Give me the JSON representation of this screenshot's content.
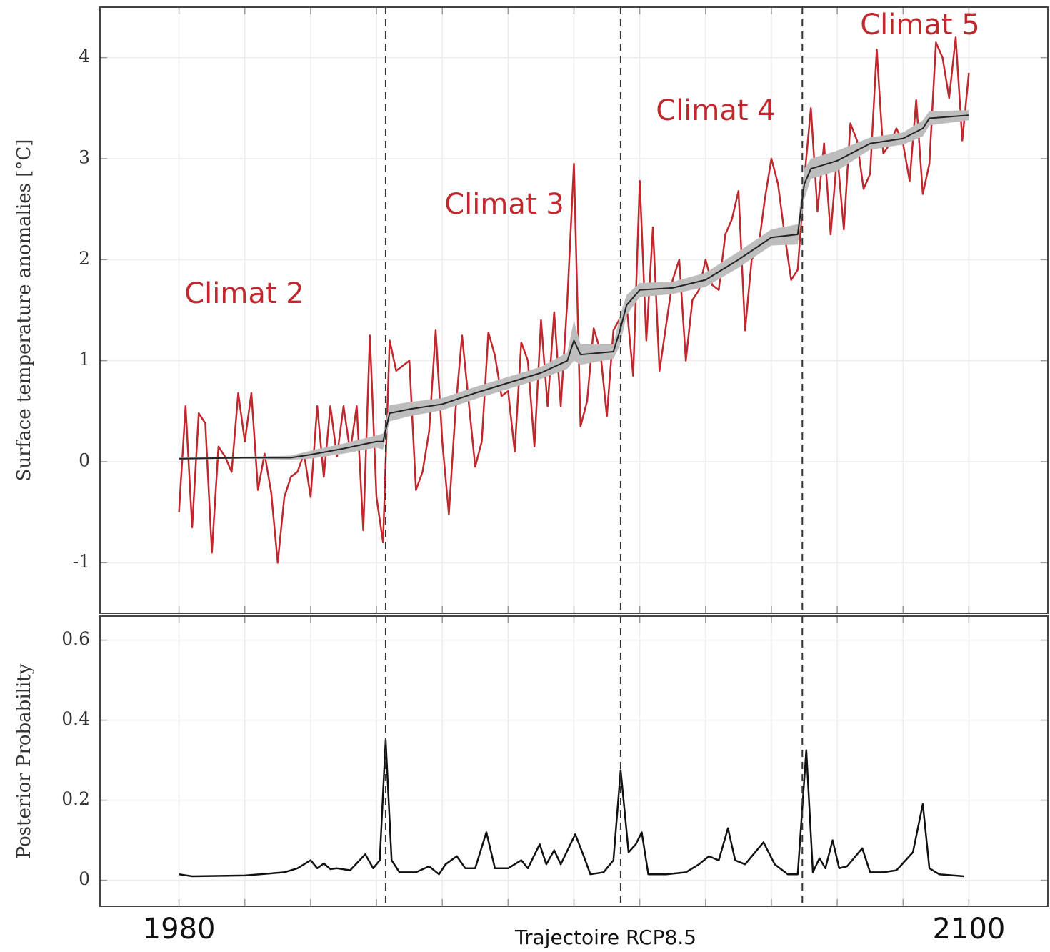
{
  "chart_data": [
    {
      "type": "line",
      "ylabel": "Surface temperature anomalies [°C]",
      "xlim": [
        1968,
        2112
      ],
      "ylim": [
        -1.5,
        4.5
      ],
      "yticks": [
        -1,
        0,
        1,
        2,
        3,
        4
      ],
      "minor_xticks": [
        1980,
        1990,
        2000,
        2010,
        2020,
        2030,
        2040,
        2050,
        2060,
        2070,
        2080,
        2090,
        2100
      ],
      "grid": true,
      "changepoints": [
        2011.4,
        2047.1,
        2074.7
      ],
      "annotations": [
        "Climat 2",
        "Climat 3",
        "Climat 4",
        "Climat 5"
      ],
      "annotation_color": "#c0282d",
      "series": [
        {
          "color": "#c0282d",
          "x": [
            1980,
            1981,
            1982,
            1983,
            1984,
            1985,
            1986,
            1987,
            1988,
            1989,
            1990,
            1991,
            1992,
            1993,
            1994,
            1995,
            1996,
            1997,
            1998,
            1999,
            2000,
            2001,
            2002,
            2003,
            2004,
            2005,
            2006,
            2007,
            2008,
            2009,
            2010,
            2011,
            2012,
            2013,
            2014,
            2015,
            2016,
            2017,
            2018,
            2019,
            2020,
            2021,
            2022,
            2023,
            2024,
            2025,
            2026,
            2027,
            2028,
            2029,
            2030,
            2031,
            2032,
            2033,
            2034,
            2035,
            2036,
            2037,
            2038,
            2039,
            2040,
            2041,
            2042,
            2043,
            2044,
            2045,
            2046,
            2047,
            2048,
            2049,
            2050,
            2051,
            2052,
            2053,
            2054,
            2055,
            2056,
            2057,
            2058,
            2059,
            2060,
            2061,
            2062,
            2063,
            2064,
            2065,
            2066,
            2067,
            2068,
            2069,
            2070,
            2071,
            2072,
            2073,
            2074,
            2075,
            2076,
            2077,
            2078,
            2079,
            2080,
            2081,
            2082,
            2083,
            2084,
            2085,
            2086,
            2087,
            2088,
            2089,
            2090,
            2091,
            2092,
            2093,
            2094,
            2095,
            2096,
            2097,
            2098,
            2099,
            2100
          ],
          "values": [
            -0.5,
            0.55,
            -0.65,
            0.48,
            0.38,
            -0.9,
            0.15,
            0.05,
            -0.1,
            0.68,
            0.2,
            0.68,
            -0.28,
            0.08,
            -0.3,
            -1.0,
            -0.35,
            -0.15,
            -0.1,
            0.08,
            -0.35,
            0.55,
            -0.15,
            0.55,
            0.05,
            0.55,
            0.1,
            0.55,
            -0.68,
            1.25,
            -0.35,
            -0.8,
            1.2,
            0.9,
            0.95,
            1.0,
            -0.28,
            -0.1,
            0.3,
            1.3,
            0.2,
            -0.52,
            0.5,
            1.25,
            0.6,
            -0.05,
            0.2,
            1.28,
            1.05,
            0.65,
            0.7,
            0.1,
            1.18,
            1.0,
            0.15,
            1.4,
            0.55,
            1.48,
            0.55,
            1.6,
            2.95,
            0.35,
            0.6,
            1.32,
            1.1,
            0.45,
            1.3,
            1.42,
            1.55,
            0.85,
            2.78,
            1.2,
            2.32,
            0.9,
            1.35,
            1.8,
            2.0,
            1.0,
            1.6,
            1.7,
            2.0,
            1.75,
            1.7,
            2.25,
            2.4,
            2.68,
            1.3,
            2.0,
            2.1,
            2.6,
            3.0,
            2.75,
            2.25,
            1.8,
            1.9,
            2.8,
            3.5,
            2.48,
            3.15,
            2.25,
            3.05,
            2.3,
            3.35,
            3.18,
            2.7,
            2.85,
            4.08,
            3.05,
            3.15,
            3.3,
            3.15,
            2.78,
            3.58,
            2.65,
            2.95,
            4.15,
            4.0,
            3.6,
            4.2,
            3.18,
            3.85
          ]
        },
        {
          "color": "#222222",
          "band_color": "#bdbdbd",
          "x": [
            1980,
            1990,
            1997,
            2000,
            2005,
            2010,
            2011,
            2012,
            2015,
            2020,
            2025,
            2030,
            2035,
            2039,
            2040,
            2041,
            2046,
            2047,
            2048,
            2050,
            2055,
            2060,
            2065,
            2070,
            2074,
            2075,
            2076,
            2080,
            2085,
            2090,
            2093,
            2094,
            2100
          ],
          "values": [
            0.03,
            0.04,
            0.04,
            0.07,
            0.13,
            0.2,
            0.2,
            0.48,
            0.52,
            0.57,
            0.68,
            0.78,
            0.88,
            1.0,
            1.2,
            1.06,
            1.09,
            1.3,
            1.55,
            1.7,
            1.72,
            1.8,
            2.0,
            2.22,
            2.25,
            2.75,
            2.9,
            2.98,
            3.15,
            3.2,
            3.3,
            3.4,
            3.43
          ],
          "errors": [
            0.01,
            0.01,
            0.02,
            0.04,
            0.05,
            0.06,
            0.08,
            0.08,
            0.07,
            0.06,
            0.06,
            0.06,
            0.06,
            0.08,
            0.2,
            0.1,
            0.07,
            0.15,
            0.1,
            0.07,
            0.06,
            0.07,
            0.08,
            0.08,
            0.1,
            0.15,
            0.1,
            0.1,
            0.06,
            0.06,
            0.08,
            0.07,
            0.05
          ]
        }
      ]
    },
    {
      "type": "line",
      "ylabel": "Posterior Probability",
      "xlabel": "Trajectoire RCP8.5",
      "xlim": [
        1968,
        2112
      ],
      "ylim": [
        -0.065,
        0.66
      ],
      "yticks": [
        0,
        0.2,
        0.4,
        0.6
      ],
      "xticks": [
        1980,
        2100
      ],
      "minor_xticks": [
        1980,
        1990,
        2000,
        2010,
        2020,
        2030,
        2040,
        2050,
        2060,
        2070,
        2080,
        2090,
        2100
      ],
      "grid": true,
      "changepoints": [
        2011.4,
        2047.1,
        2074.7
      ],
      "series": [
        {
          "color": "#111111",
          "x": [
            1980,
            1982,
            1990,
            1996,
            1998,
            2000,
            2001,
            2002,
            2003,
            2004,
            2006,
            2008.3,
            2009.5,
            2010.5,
            2011.4,
            2012.3,
            2013.5,
            2016,
            2018,
            2019.5,
            2020.5,
            2022.2,
            2023.5,
            2025,
            2026.7,
            2028,
            2030,
            2032,
            2033,
            2034.8,
            2035.8,
            2037,
            2038,
            2040.2,
            2041.5,
            2042.5,
            2044.5,
            2046,
            2047.1,
            2048.3,
            2049.4,
            2050.3,
            2051.3,
            2054,
            2057,
            2059,
            2060.5,
            2062,
            2063.4,
            2064.5,
            2066,
            2068.8,
            2070.5,
            2072.5,
            2074,
            2075.3,
            2076.3,
            2077.3,
            2078.2,
            2079.3,
            2080.3,
            2081.5,
            2083.8,
            2085,
            2087,
            2089,
            2091.5,
            2093,
            2094,
            2095.5,
            2099.3
          ],
          "values": [
            0.015,
            0.01,
            0.012,
            0.02,
            0.03,
            0.05,
            0.03,
            0.042,
            0.028,
            0.03,
            0.025,
            0.065,
            0.03,
            0.05,
            0.35,
            0.05,
            0.02,
            0.02,
            0.035,
            0.015,
            0.04,
            0.06,
            0.03,
            0.03,
            0.12,
            0.03,
            0.03,
            0.05,
            0.03,
            0.09,
            0.04,
            0.075,
            0.04,
            0.115,
            0.06,
            0.015,
            0.02,
            0.05,
            0.275,
            0.07,
            0.09,
            0.12,
            0.015,
            0.015,
            0.02,
            0.04,
            0.06,
            0.05,
            0.13,
            0.05,
            0.04,
            0.095,
            0.04,
            0.015,
            0.015,
            0.325,
            0.02,
            0.055,
            0.03,
            0.1,
            0.03,
            0.035,
            0.08,
            0.02,
            0.02,
            0.025,
            0.07,
            0.19,
            0.03,
            0.015,
            0.01
          ]
        }
      ]
    }
  ]
}
